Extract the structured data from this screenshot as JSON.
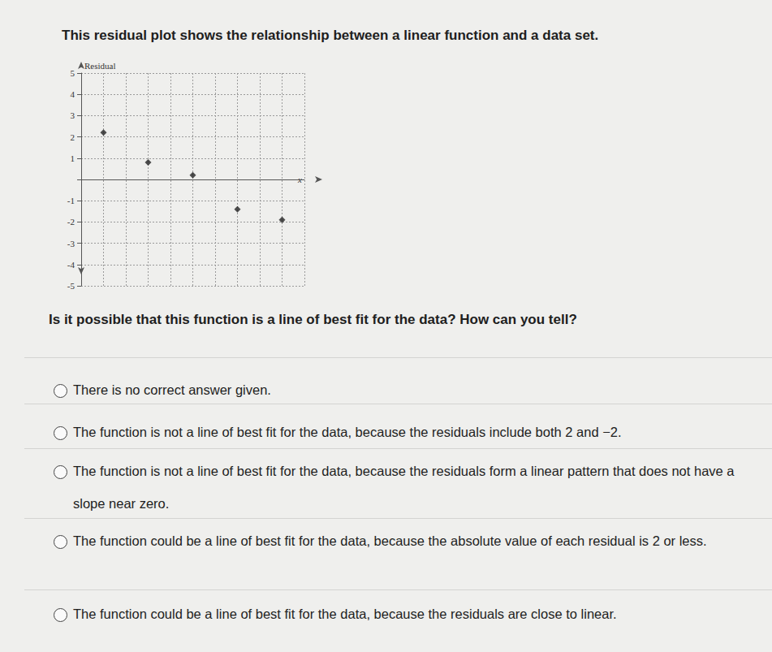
{
  "heading": "This residual plot shows the relationship between a linear function and a data set.",
  "question": "Is it possible that this function is a line of best fit for the data? How can you tell?",
  "options": [
    "There is no correct answer given.",
    "The function is not a line of best fit for the data, because the residuals include both 2 and −2.",
    "The function is not a line of best fit for the data, because the residuals form a linear pattern that does not have a slope near zero.",
    "The function could be a line of best fit for the data, because the absolute value of each residual is 2 or less.",
    "The function could be a line of best fit for the data, because the residuals are close to linear."
  ],
  "chart_data": {
    "type": "scatter",
    "y_label": "Residual",
    "x_label": "x",
    "x": [
      1,
      3,
      5,
      7,
      9
    ],
    "values": [
      2.2,
      0.8,
      0.2,
      -1.4,
      -1.9
    ],
    "xlim": [
      0,
      10
    ],
    "xticks": [
      0,
      1,
      2,
      3,
      4,
      5,
      6,
      7,
      8,
      9,
      10
    ],
    "ylim": [
      -5,
      5
    ],
    "yticks": [
      -5,
      -4,
      -3,
      -2,
      -1,
      1,
      2,
      3,
      4,
      5
    ],
    "grid": true,
    "tick_labels": "y",
    "color": "#222222",
    "marker": "diamond"
  }
}
